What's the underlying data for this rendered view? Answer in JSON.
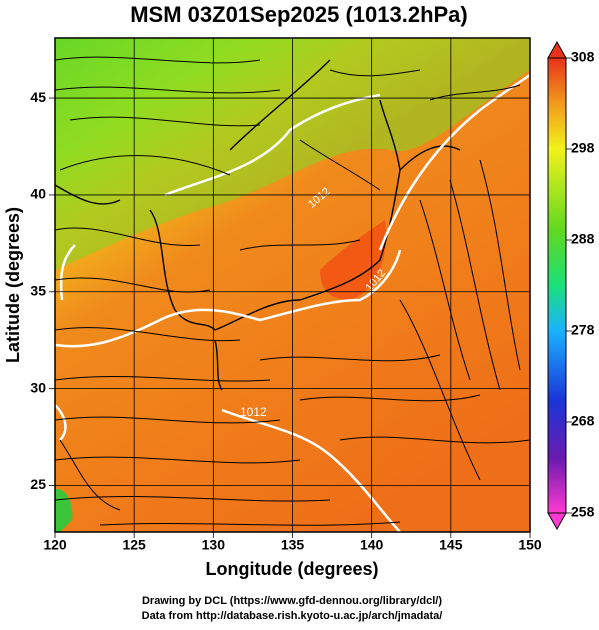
{
  "title": "MSM 03Z01Sep2025 (1013.2hPa)",
  "map": {
    "xlabel": "Longitude (degrees)",
    "ylabel": "Latitude  (degrees)",
    "xlim": [
      120,
      150
    ],
    "ylim": [
      22.6,
      48.1
    ],
    "xticks": [
      120,
      125,
      130,
      135,
      140,
      145,
      150
    ],
    "yticks": [
      25,
      30,
      35,
      40,
      45
    ],
    "contour_labels": [
      "1012",
      "1012",
      "1012"
    ]
  },
  "colorbar": {
    "lim": [
      258,
      308
    ],
    "ticks": [
      258,
      268,
      278,
      288,
      298,
      308
    ]
  },
  "credits": [
    "Drawing by DCL (https://www.gfd-dennou.org/library/dcl/)",
    "Data from http://database.rish.kyoto-u.ac.jp/arch/jmadata/"
  ]
}
